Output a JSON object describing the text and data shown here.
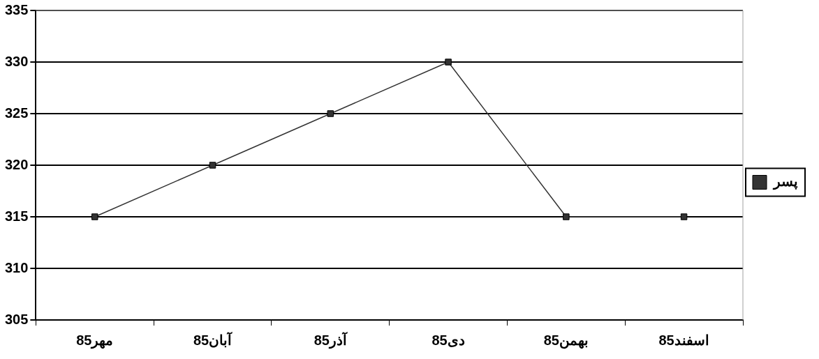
{
  "chart_data": {
    "type": "line",
    "categories": [
      "مهر85",
      "آبان85",
      "آذر85",
      "دی85",
      "بهمن85",
      "اسفند85"
    ],
    "series": [
      {
        "name": "پسر",
        "color": "#333333",
        "values": [
          315,
          320,
          325,
          330,
          315,
          315
        ]
      }
    ],
    "ylim": [
      305,
      335
    ],
    "yticks": [
      305,
      310,
      315,
      320,
      325,
      330,
      335
    ],
    "grid": "y",
    "legend": "right",
    "marker": "square",
    "line_style": "solid"
  }
}
